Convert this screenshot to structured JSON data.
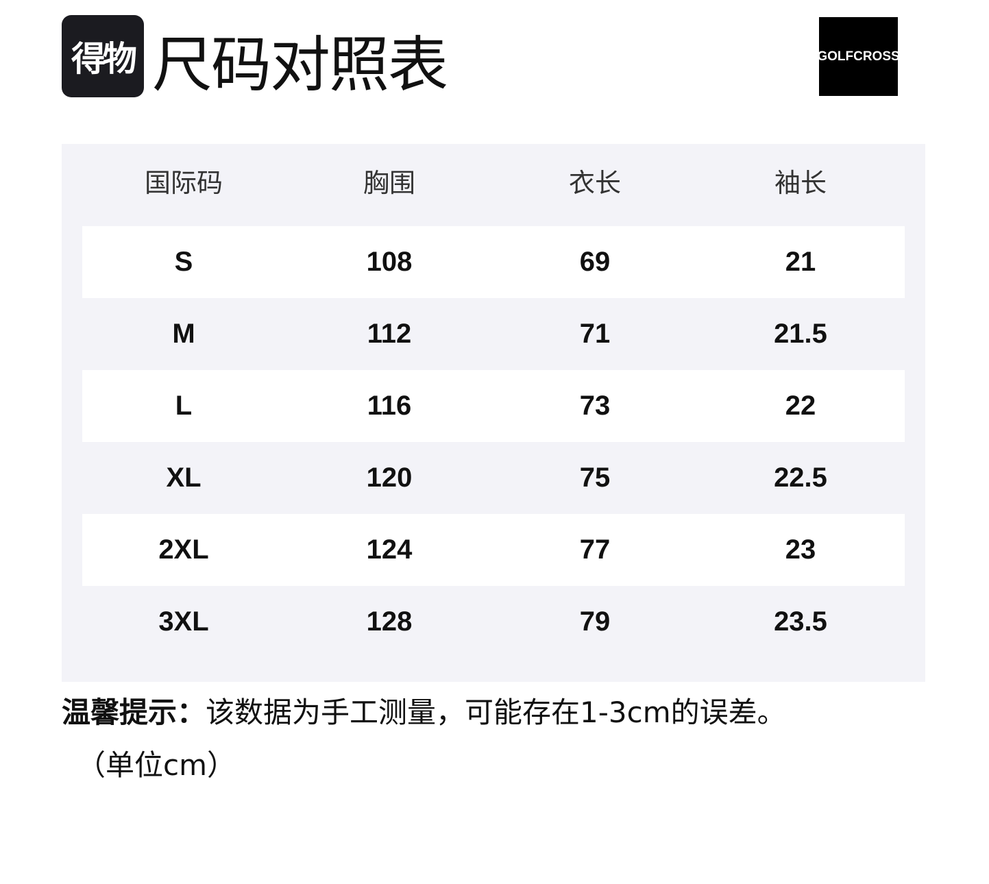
{
  "header": {
    "logo_text": "得物",
    "title": "尺码对照表",
    "brand": "GOLFCROSS"
  },
  "table": {
    "columns": [
      "国际码",
      "胸围",
      "衣长",
      "袖长"
    ],
    "rows": [
      [
        "S",
        "108",
        "69",
        "21"
      ],
      [
        "M",
        "112",
        "71",
        "21.5"
      ],
      [
        "L",
        "116",
        "73",
        "22"
      ],
      [
        "XL",
        "120",
        "75",
        "22.5"
      ],
      [
        "2XL",
        "124",
        "77",
        "23"
      ],
      [
        "3XL",
        "128",
        "79",
        "23.5"
      ]
    ]
  },
  "note": {
    "label": "温馨提示：",
    "text": "该数据为手工测量，可能存在1-3cm的误差。",
    "unit": "（单位cm）"
  }
}
